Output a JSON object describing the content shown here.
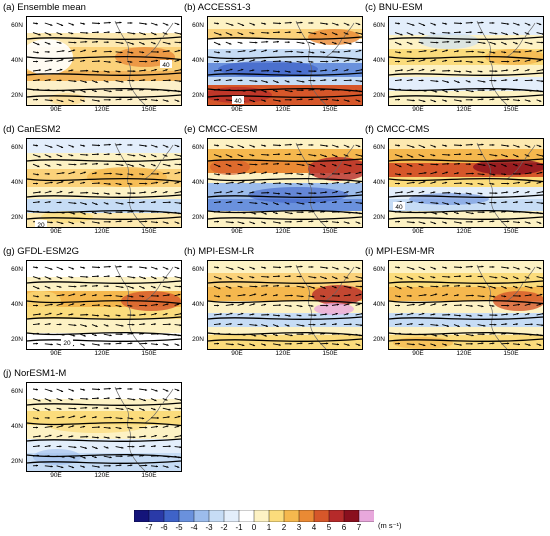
{
  "panels": [
    {
      "title": "(a) Ensemble mean"
    },
    {
      "title": "(b) ACCESS1-3"
    },
    {
      "title": "(c) BNU-ESM"
    },
    {
      "title": "(d) CanESM2"
    },
    {
      "title": "(e) CMCC-CESM"
    },
    {
      "title": "(f) CMCC-CMS"
    },
    {
      "title": "(g) GFDL-ESM2G"
    },
    {
      "title": "(h) MPI-ESM-LR"
    },
    {
      "title": "(i) MPI-ESM-MR"
    },
    {
      "title": "(j) NorESM1-M"
    }
  ],
  "axes": {
    "lat_labels": [
      "60N",
      "40N",
      "20N"
    ],
    "lon_labels": [
      "90E",
      "120E",
      "150E"
    ]
  },
  "contour_labels": {
    "a": "40",
    "b": "40",
    "d": "20",
    "f": "40",
    "g": "20"
  },
  "colorbar": {
    "ticks": [
      "-7",
      "-6",
      "-5",
      "-4",
      "-3",
      "-2",
      "-1",
      "0",
      "1",
      "2",
      "3",
      "4",
      "5",
      "6",
      "7"
    ],
    "unit": "(m s⁻¹)",
    "colors": [
      "#14147a",
      "#2a3aa8",
      "#3f63c8",
      "#6a91dd",
      "#9cbcec",
      "#c6dcf5",
      "#e3eefb",
      "#ffffff",
      "#fdf2c4",
      "#fbdc7c",
      "#f5b84e",
      "#ea8a34",
      "#d6572a",
      "#b62a2a",
      "#8a0f1e",
      "#e8a8dc"
    ]
  }
}
